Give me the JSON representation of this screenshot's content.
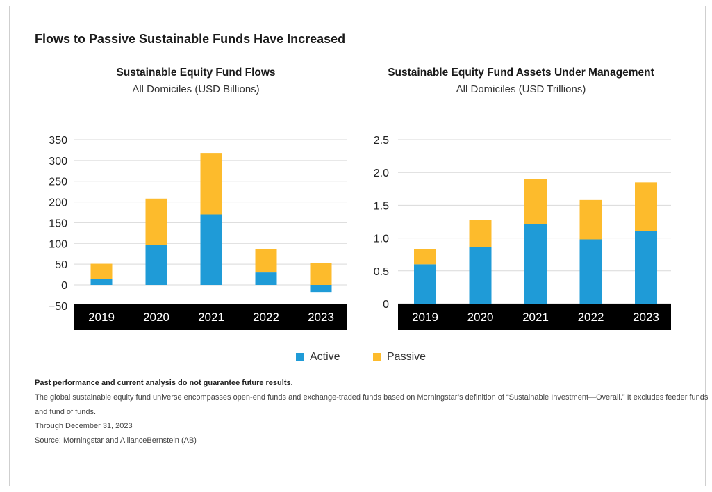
{
  "title": "Flows to Passive Sustainable Funds Have Increased",
  "colors": {
    "active": "#1f9bd7",
    "passive": "#fdbb2c",
    "axis_bar": "#000000",
    "grid": "#d9d9d9"
  },
  "legend": {
    "active": "Active",
    "passive": "Passive"
  },
  "chart_data": [
    {
      "type": "bar",
      "stacked": true,
      "title": "Sustainable Equity Fund Flows",
      "subtitle": "All Domiciles (USD Billions)",
      "categories": [
        "2019",
        "2020",
        "2021",
        "2022",
        "2023"
      ],
      "series": [
        {
          "name": "Active",
          "values": [
            15,
            97,
            170,
            30,
            -17
          ]
        },
        {
          "name": "Passive",
          "values": [
            36,
            111,
            148,
            56,
            52
          ]
        }
      ],
      "ylim": [
        -50,
        350
      ],
      "yticks": [
        350,
        300,
        250,
        200,
        150,
        100,
        50,
        0,
        -50
      ],
      "ytick_labels": [
        "350",
        "300",
        "250",
        "200",
        "150",
        "100",
        "50",
        "0",
        "−50"
      ],
      "grid": true
    },
    {
      "type": "bar",
      "stacked": true,
      "title": "Sustainable Equity Fund Assets Under Management",
      "subtitle": "All Domiciles (USD Trillions)",
      "categories": [
        "2019",
        "2020",
        "2021",
        "2022",
        "2023"
      ],
      "series": [
        {
          "name": "Active",
          "values": [
            0.6,
            0.86,
            1.21,
            0.98,
            1.11
          ]
        },
        {
          "name": "Passive",
          "values": [
            0.23,
            0.42,
            0.69,
            0.6,
            0.74
          ]
        }
      ],
      "ylim": [
        0,
        2.5
      ],
      "yticks": [
        2.5,
        2.0,
        1.5,
        1.0,
        0.5,
        0
      ],
      "ytick_labels": [
        "2.5",
        "2.0",
        "1.5",
        "1.0",
        "0.5",
        "0"
      ],
      "grid": true
    }
  ],
  "notes": {
    "disclaimer": "Past performance and current analysis do not guarantee future results.",
    "universe_line1": "The global sustainable equity fund universe encompasses open-end funds and exchange-traded funds based on Morningstar’s definition of “Sustainable Investment—Overall.” It excludes feeder funds",
    "universe_line2": "and fund of funds.",
    "date": "Through December 31, 2023",
    "source": "Source: Morningstar and AllianceBernstein (AB)"
  }
}
